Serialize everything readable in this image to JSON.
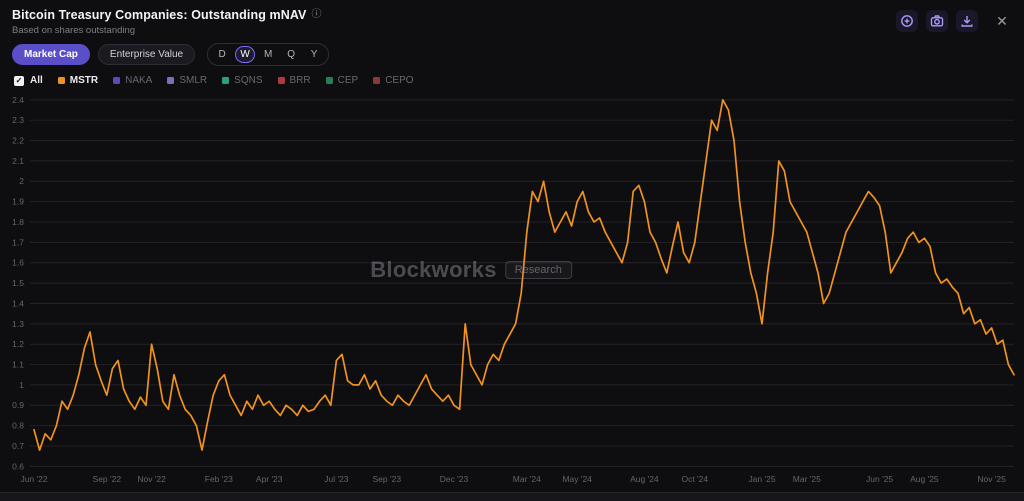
{
  "header": {
    "title": "Bitcoin Treasury Companies: Outstanding mNAV",
    "info_icon": "ⓘ",
    "subtitle": "Based on shares outstanding",
    "close_icon": "✕"
  },
  "toolbar": {
    "metric_toggle": [
      {
        "label": "Market Cap",
        "selected": true
      },
      {
        "label": "Enterprise Value",
        "selected": false
      }
    ],
    "period_toggle": [
      {
        "label": "D",
        "selected": false
      },
      {
        "label": "W",
        "selected": true
      },
      {
        "label": "M",
        "selected": false
      },
      {
        "label": "Q",
        "selected": false
      },
      {
        "label": "Y",
        "selected": false
      }
    ]
  },
  "actions": {
    "buttons": [
      {
        "name": "zoom-in"
      },
      {
        "name": "camera"
      },
      {
        "name": "download"
      },
      {
        "name": "close"
      }
    ],
    "icon_color": "#a99cf8"
  },
  "legend": {
    "all_label": "All",
    "check_glyph": "✓",
    "items": [
      {
        "label": "MSTR",
        "color": "#f0921e",
        "active": true
      },
      {
        "label": "NAKA",
        "color": "#7a5af8",
        "active": false
      },
      {
        "label": "SMLR",
        "color": "#a78bfa",
        "active": false
      },
      {
        "label": "SQNS",
        "color": "#34d399",
        "active": false
      },
      {
        "label": "BRR",
        "color": "#e5484d",
        "active": false
      },
      {
        "label": "CEP",
        "color": "#30a46c",
        "active": false
      },
      {
        "label": "CEPO",
        "color": "#b54548",
        "active": false
      }
    ]
  },
  "watermark": {
    "text": "Blockworks",
    "badge": "Research"
  },
  "chart_data": {
    "type": "line",
    "title": "Bitcoin Treasury Companies: Outstanding mNAV",
    "subtitle": "Based on shares outstanding",
    "series_name": "MSTR",
    "series_color": "#f0921e",
    "x_unit": "week",
    "ylim": [
      0.6,
      2.4
    ],
    "ytick_step": 0.1,
    "grid": true,
    "legend_position": "top-left",
    "xticks": [
      {
        "i": 0,
        "label": "Jun '22"
      },
      {
        "i": 13,
        "label": "Sep '22"
      },
      {
        "i": 21,
        "label": "Nov '22"
      },
      {
        "i": 33,
        "label": "Feb '23"
      },
      {
        "i": 42,
        "label": "Apr '23"
      },
      {
        "i": 54,
        "label": "Jul '23"
      },
      {
        "i": 63,
        "label": "Sep '23"
      },
      {
        "i": 75,
        "label": "Dec '23"
      },
      {
        "i": 88,
        "label": "Mar '24"
      },
      {
        "i": 97,
        "label": "May '24"
      },
      {
        "i": 109,
        "label": "Aug '24"
      },
      {
        "i": 118,
        "label": "Oct '24"
      },
      {
        "i": 130,
        "label": "Jan '25"
      },
      {
        "i": 138,
        "label": "Mar '25"
      },
      {
        "i": 151,
        "label": "Jun '25"
      },
      {
        "i": 159,
        "label": "Aug '25"
      },
      {
        "i": 171,
        "label": "Nov '25"
      }
    ],
    "values": [
      0.78,
      0.68,
      0.76,
      0.73,
      0.8,
      0.92,
      0.88,
      0.95,
      1.05,
      1.18,
      1.26,
      1.1,
      1.02,
      0.95,
      1.08,
      1.12,
      0.98,
      0.92,
      0.88,
      0.94,
      0.9,
      1.2,
      1.08,
      0.92,
      0.88,
      1.05,
      0.95,
      0.88,
      0.85,
      0.8,
      0.68,
      0.82,
      0.95,
      1.02,
      1.05,
      0.95,
      0.9,
      0.85,
      0.92,
      0.88,
      0.95,
      0.9,
      0.92,
      0.88,
      0.85,
      0.9,
      0.88,
      0.85,
      0.9,
      0.87,
      0.88,
      0.92,
      0.95,
      0.9,
      1.12,
      1.15,
      1.02,
      1.0,
      1.0,
      1.05,
      0.98,
      1.02,
      0.95,
      0.92,
      0.9,
      0.95,
      0.92,
      0.9,
      0.95,
      1.0,
      1.05,
      0.98,
      0.95,
      0.92,
      0.95,
      0.9,
      0.88,
      1.3,
      1.1,
      1.05,
      1.0,
      1.1,
      1.15,
      1.12,
      1.2,
      1.25,
      1.3,
      1.45,
      1.75,
      1.95,
      1.9,
      2.0,
      1.85,
      1.75,
      1.8,
      1.85,
      1.78,
      1.9,
      1.95,
      1.85,
      1.8,
      1.82,
      1.75,
      1.7,
      1.65,
      1.6,
      1.7,
      1.95,
      1.98,
      1.9,
      1.75,
      1.7,
      1.62,
      1.55,
      1.68,
      1.8,
      1.65,
      1.6,
      1.7,
      1.9,
      2.1,
      2.3,
      2.25,
      2.4,
      2.35,
      2.2,
      1.9,
      1.7,
      1.55,
      1.45,
      1.3,
      1.55,
      1.75,
      2.1,
      2.05,
      1.9,
      1.85,
      1.8,
      1.75,
      1.65,
      1.55,
      1.4,
      1.45,
      1.55,
      1.65,
      1.75,
      1.8,
      1.85,
      1.9,
      1.95,
      1.92,
      1.88,
      1.75,
      1.55,
      1.6,
      1.65,
      1.72,
      1.75,
      1.7,
      1.72,
      1.68,
      1.55,
      1.5,
      1.52,
      1.48,
      1.45,
      1.35,
      1.38,
      1.3,
      1.32,
      1.25,
      1.28,
      1.2,
      1.22,
      1.1,
      1.05
    ]
  }
}
